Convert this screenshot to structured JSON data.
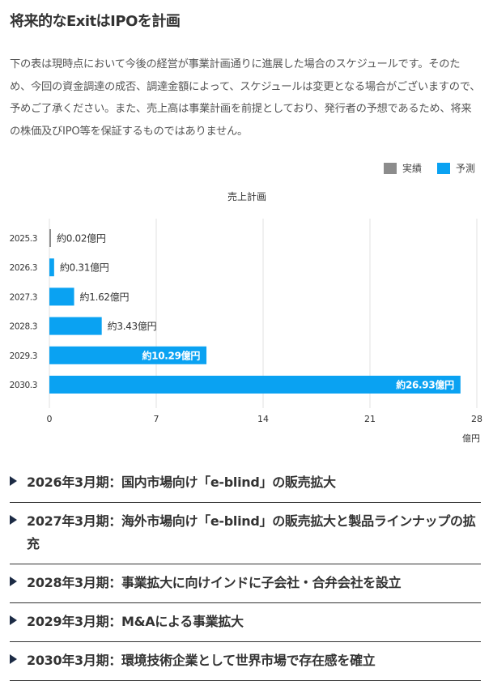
{
  "heading": "将来的なExitはIPOを計画",
  "description": "下の表は現時点において今後の経営が事業計画通りに進展した場合のスケジュールです。そのため、今回の資金調達の成否、調達金額によって、スケジュールは変更となる場合がございますので、予めご了承ください。また、売上高は事業計画を前提としており、発行者の予想であるため、将来の株価及びIPO等を保証するものではありません。",
  "legend": [
    {
      "label": "実績",
      "color": "#8c8c8c"
    },
    {
      "label": "予測",
      "color": "#0aa2f2"
    }
  ],
  "chart_data": {
    "type": "bar",
    "orientation": "horizontal",
    "title": "売上計画",
    "unit": "億円",
    "categories": [
      "2025.3",
      "2026.3",
      "2027.3",
      "2028.3",
      "2029.3",
      "2030.3"
    ],
    "values": [
      0.02,
      0.31,
      1.62,
      3.43,
      10.29,
      26.93
    ],
    "labels": [
      "約0.02億円",
      "約0.31億円",
      "約1.62億円",
      "約3.43億円",
      "約10.29億円",
      "約26.93億円"
    ],
    "series_type": [
      "実績",
      "予測",
      "予測",
      "予測",
      "予測",
      "予測"
    ],
    "xlim": [
      0,
      28
    ],
    "xticks": [
      0,
      7,
      14,
      21,
      28
    ],
    "grid": true,
    "legend_position": "top-right"
  },
  "milestones": [
    "2026年3月期：国内市場向け「e-blind」の販売拡大",
    "2027年3月期：海外市場向け「e-blind」の販売拡大と製品ラインナップの拡充",
    "2028年3月期：事業拡大に向けインドに子会社・合弁会社を設立",
    "2029年3月期：M&Aによる事業拡大",
    "2030年3月期：環境技術企業として世界市場で存在感を確立"
  ]
}
